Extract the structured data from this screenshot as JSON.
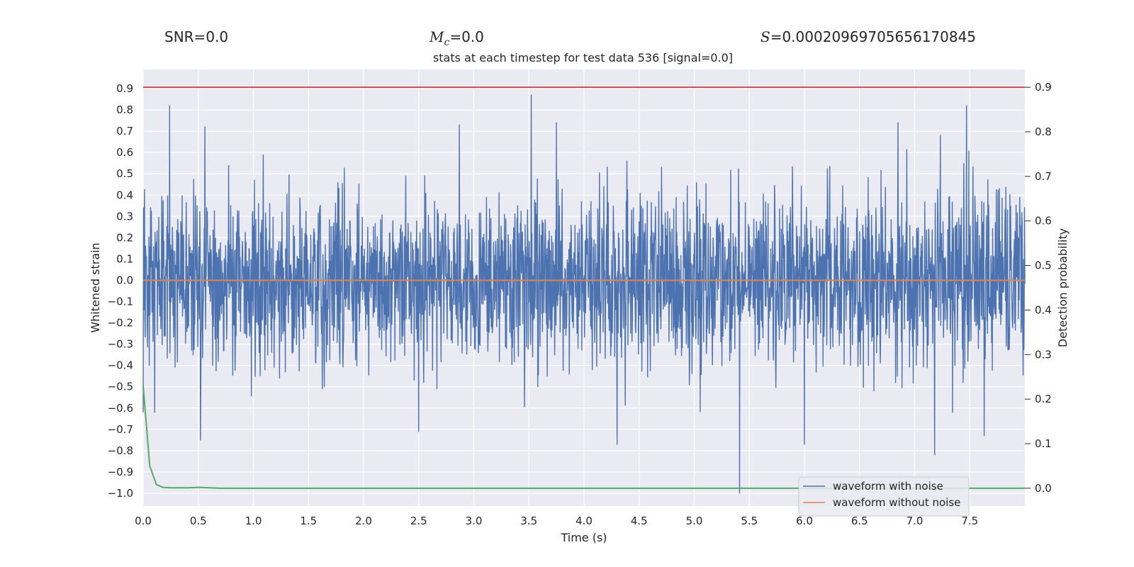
{
  "header": {
    "snr_label": "SNR=",
    "snr_value": "0.0",
    "mc_symbol": "M",
    "mc_sub": "c",
    "mc_value": "=0.0",
    "s_symbol": "S",
    "s_value": "=0.00020969705656170845"
  },
  "chart_data": {
    "type": "line",
    "title": "stats at each timestep for test data 536 [signal=0.0]",
    "xlabel": "Time (s)",
    "ylabel": "Whitened strain",
    "y2label": "Detection probability",
    "xlim": [
      0.0,
      8.0
    ],
    "ylim": [
      -1.06,
      0.99
    ],
    "y2lim": [
      -0.04,
      0.94
    ],
    "xticks": [
      "0.0",
      "0.5",
      "1.0",
      "1.5",
      "2.0",
      "2.5",
      "3.0",
      "3.5",
      "4.0",
      "4.5",
      "5.0",
      "5.5",
      "6.0",
      "6.5",
      "7.0",
      "7.5"
    ],
    "xtick_values": [
      0.0,
      0.5,
      1.0,
      1.5,
      2.0,
      2.5,
      3.0,
      3.5,
      4.0,
      4.5,
      5.0,
      5.5,
      6.0,
      6.5,
      7.0,
      7.5
    ],
    "yticks": [
      "0.9",
      "0.8",
      "0.7",
      "0.6",
      "0.5",
      "0.4",
      "0.3",
      "0.2",
      "0.1",
      "0.0",
      "−0.1",
      "−0.2",
      "−0.3",
      "−0.4",
      "−0.5",
      "−0.6",
      "−0.7",
      "−0.8",
      "−0.9",
      "−1.0"
    ],
    "ytick_values": [
      0.9,
      0.8,
      0.7,
      0.6,
      0.5,
      0.4,
      0.3,
      0.2,
      0.1,
      0.0,
      -0.1,
      -0.2,
      -0.3,
      -0.4,
      -0.5,
      -0.6,
      -0.7,
      -0.8,
      -0.9,
      -1.0
    ],
    "y2ticks": [
      "0.9",
      "0.8",
      "0.7",
      "0.6",
      "0.5",
      "0.4",
      "0.3",
      "0.2",
      "0.1",
      "0.0"
    ],
    "y2tick_values": [
      0.9,
      0.8,
      0.7,
      0.6,
      0.5,
      0.4,
      0.3,
      0.2,
      0.1,
      0.0
    ],
    "series": [
      {
        "name": "waveform with noise",
        "color": "#4c72b0",
        "description": "dense noise, roughly -0.75..0.82, occasional spikes",
        "peaks_up": [
          [
            0.24,
            0.82
          ],
          [
            3.52,
            0.87
          ],
          [
            7.47,
            0.82
          ],
          [
            0.56,
            0.72
          ],
          [
            2.87,
            0.73
          ],
          [
            3.75,
            0.74
          ],
          [
            6.85,
            0.74
          ]
        ],
        "peaks_down": [
          [
            5.41,
            -1.0
          ],
          [
            0.52,
            -0.75
          ],
          [
            4.3,
            -0.77
          ],
          [
            7.18,
            -0.82
          ],
          [
            7.63,
            -0.73
          ],
          [
            2.5,
            -0.71
          ],
          [
            6.0,
            -0.77
          ]
        ]
      },
      {
        "name": "waveform without noise",
        "color": "#dd8452",
        "values_const": 0.0
      },
      {
        "name": "detection probability",
        "color": "#55a868",
        "axis": "right",
        "x": [
          0.0,
          0.06,
          0.12,
          0.18,
          0.24,
          0.32,
          0.4,
          0.5,
          0.6,
          0.7,
          0.8,
          1.0,
          2.0,
          4.0,
          6.0,
          8.0
        ],
        "y": [
          0.23,
          0.05,
          0.008,
          0.002,
          0.001,
          0.001,
          0.001,
          0.002,
          0.001,
          0.0,
          0.0,
          0.0,
          0.0,
          0.0,
          0.0,
          0.0
        ]
      },
      {
        "name": "threshold",
        "color": "#c44e52",
        "axis": "right",
        "values_const": 0.9
      }
    ],
    "legend": [
      "waveform with noise",
      "waveform without noise"
    ],
    "legend_position": "bottom-right",
    "grid": true
  }
}
